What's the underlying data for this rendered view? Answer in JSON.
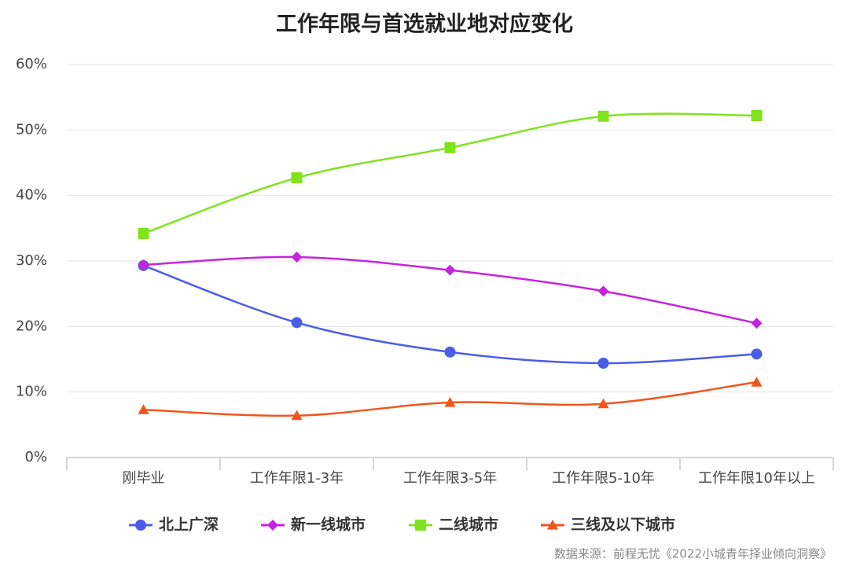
{
  "chart_data": {
    "type": "line",
    "title": "工作年限与首选就业地对应变化",
    "categories": [
      "刚毕业",
      "工作年限1-3年",
      "工作年限3-5年",
      "工作年限5-10年",
      "工作年限10年以上"
    ],
    "series": [
      {
        "name": "北上广深",
        "color": "#4a5de6",
        "marker": "circle",
        "values": [
          29.3,
          20.6,
          16.1,
          14.4,
          15.8
        ]
      },
      {
        "name": "新一线城市",
        "color": "#c424dc",
        "marker": "diamond",
        "values": [
          29.4,
          30.6,
          28.6,
          25.4,
          20.5
        ]
      },
      {
        "name": "二线城市",
        "color": "#7fe31c",
        "marker": "square",
        "values": [
          34.2,
          42.7,
          47.3,
          52.1,
          52.2
        ]
      },
      {
        "name": "三线及以下城市",
        "color": "#f0561c",
        "marker": "triangle",
        "values": [
          7.3,
          6.4,
          8.4,
          8.2,
          11.5
        ]
      }
    ],
    "ylim": [
      0,
      60
    ],
    "yticks": [
      {
        "value": 0,
        "label": "0%"
      },
      {
        "value": 10,
        "label": "10%"
      },
      {
        "value": 20,
        "label": "20%"
      },
      {
        "value": 30,
        "label": "30%"
      },
      {
        "value": 40,
        "label": "40%"
      },
      {
        "value": 50,
        "label": "50%"
      },
      {
        "value": 60,
        "label": "60%"
      }
    ],
    "grid": true,
    "smooth": true,
    "legend": "bottom",
    "source": "数据来源：前程无忧《2022小城青年择业倾向洞察》"
  }
}
